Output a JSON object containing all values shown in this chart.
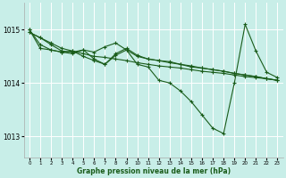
{
  "background_color": "#c8eee8",
  "grid_color": "#ffffff",
  "line_color": "#1a5c1a",
  "marker_color": "#1a5c1a",
  "xlabel": "Graphe pression niveau de la mer (hPa)",
  "xlim": [
    -0.5,
    23.5
  ],
  "ylim": [
    1012.6,
    1015.5
  ],
  "yticks": [
    1013,
    1014,
    1015
  ],
  "xticks": [
    0,
    1,
    2,
    3,
    4,
    5,
    6,
    7,
    8,
    9,
    10,
    11,
    12,
    13,
    14,
    15,
    16,
    17,
    18,
    19,
    20,
    21,
    22,
    23
  ],
  "series": [
    {
      "x": [
        0,
        1,
        2,
        3,
        4,
        5,
        6,
        7,
        8,
        9,
        10,
        11,
        12,
        13,
        14,
        15,
        16,
        17,
        18,
        19,
        20,
        21,
        22,
        23
      ],
      "y": [
        1014.95,
        1014.85,
        1014.75,
        1014.65,
        1014.6,
        1014.55,
        1014.5,
        1014.48,
        1014.45,
        1014.42,
        1014.38,
        1014.35,
        1014.32,
        1014.3,
        1014.28,
        1014.25,
        1014.22,
        1014.2,
        1014.18,
        1014.15,
        1014.12,
        1014.1,
        1014.08,
        1014.05
      ]
    },
    {
      "x": [
        0,
        1,
        2,
        3,
        4,
        5,
        6,
        7,
        8,
        9,
        10,
        11,
        12,
        13,
        14,
        15,
        16,
        17,
        18,
        19,
        20,
        21,
        22,
        23
      ],
      "y": [
        1014.95,
        1014.85,
        1014.72,
        1014.6,
        1014.58,
        1014.62,
        1014.58,
        1014.68,
        1014.75,
        1014.62,
        1014.5,
        1014.45,
        1014.42,
        1014.38,
        1014.35,
        1014.32,
        1014.28,
        1014.25,
        1014.22,
        1014.18,
        1014.15,
        1014.12,
        1014.08,
        1014.05
      ]
    },
    {
      "x": [
        0,
        1,
        2,
        3,
        4,
        5,
        6,
        7,
        8,
        9,
        10,
        11,
        12,
        13,
        14,
        15,
        16,
        17,
        18,
        19,
        20,
        21,
        22,
        23
      ],
      "y": [
        1015.0,
        1014.72,
        1014.62,
        1014.58,
        1014.6,
        1014.5,
        1014.42,
        1014.35,
        1014.55,
        1014.65,
        1014.52,
        1014.45,
        1014.42,
        1014.4,
        1014.35,
        1014.3,
        1014.28,
        1014.25,
        1014.22,
        1014.18,
        1014.15,
        1014.12,
        1014.08,
        1014.05
      ]
    },
    {
      "x": [
        0,
        1,
        2,
        3,
        4,
        5,
        6,
        7,
        8,
        9,
        10,
        11,
        12,
        13,
        14,
        15,
        16,
        17,
        18,
        19,
        20,
        21,
        22,
        23
      ],
      "y": [
        1015.0,
        1014.65,
        1014.62,
        1014.58,
        1014.55,
        1014.62,
        1014.45,
        1014.35,
        1014.52,
        1014.62,
        1014.35,
        1014.3,
        1014.05,
        1014.0,
        1013.85,
        1013.65,
        1013.4,
        1013.15,
        1013.05,
        1014.0,
        1015.1,
        1014.6,
        1014.2,
        1014.1
      ]
    }
  ]
}
